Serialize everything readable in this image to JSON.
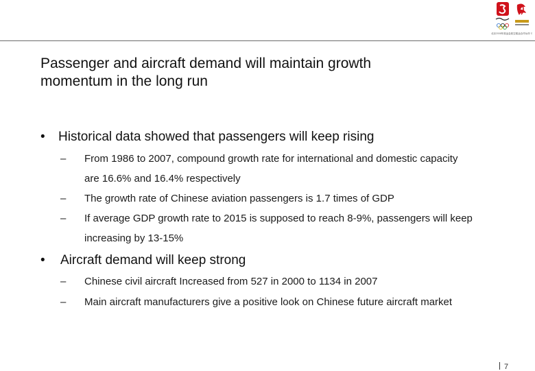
{
  "header": {
    "tagline": "北京2008年奥运会航空客运合作伙伴 OFFICIAL AIRLINE PARTNER OF THE BEIJING 2008 OLYMPIC GAMES"
  },
  "slide": {
    "title_line1": "Passenger and aircraft demand will maintain growth",
    "title_line2": "momentum in the long run",
    "bullets": [
      {
        "marker": "•",
        "text": "Historical data showed that passengers will keep rising",
        "subs": [
          {
            "marker": "–",
            "line1": "From 1986 to 2007, compound growth rate for international and domestic capacity",
            "line2": "are 16.6% and 16.4% respectively"
          },
          {
            "marker": "–",
            "line1": "The growth rate of Chinese aviation passengers is 1.7 times of GDP"
          },
          {
            "marker": "–",
            "line1": "If average GDP growth rate to 2015 is supposed to reach 8-9%, passengers will keep",
            "line2": "increasing by 13-15%"
          }
        ]
      },
      {
        "marker": "•",
        "text": "Aircraft demand will keep strong",
        "subs": [
          {
            "marker": "–",
            "line1": "Chinese civil aircraft Increased from 527 in 2000 to 1134 in 2007"
          },
          {
            "marker": "–",
            "line1": "Main aircraft manufacturers give a positive look on Chinese future aircraft market"
          }
        ]
      }
    ]
  },
  "footer": {
    "page_number": "7"
  },
  "colors": {
    "accent_red": "#d0121b",
    "text": "#111111",
    "rule": "#6b6b6b"
  }
}
